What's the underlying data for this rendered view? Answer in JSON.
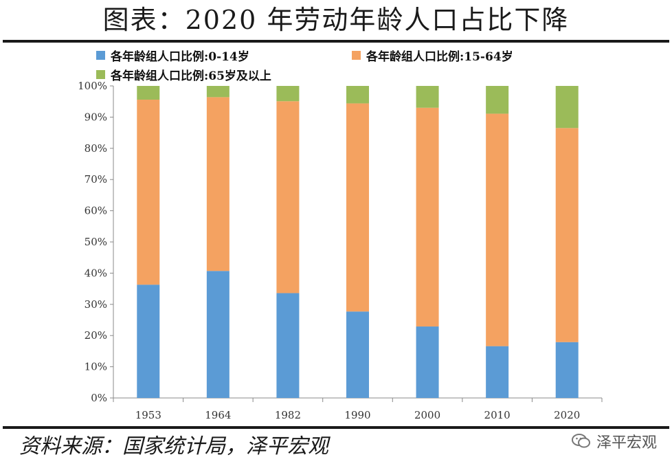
{
  "title": "图表：2020 年劳动年龄人口占比下降",
  "source": "资料来源：国家统计局，泽平宏观",
  "watermark": "泽平宏观",
  "icons": {
    "watermark": "wechat-icon"
  },
  "colors": {
    "series_0_14": "#5b9bd5",
    "series_15_64": "#f4a261",
    "series_65plus": "#9bbb59",
    "rule": "#1a1a1a"
  },
  "chart_data": {
    "type": "bar",
    "stacked": true,
    "categories": [
      "1953",
      "1964",
      "1982",
      "1990",
      "2000",
      "2010",
      "2020"
    ],
    "series": [
      {
        "name": "各年龄组人口比例:0-14岁",
        "values": [
          36.3,
          40.7,
          33.6,
          27.7,
          22.9,
          16.6,
          17.9
        ]
      },
      {
        "name": "各年龄组人口比例:15-64岁",
        "values": [
          59.3,
          55.7,
          61.5,
          66.7,
          70.1,
          74.5,
          68.6
        ]
      },
      {
        "name": "各年龄组人口比例:65岁及以上",
        "values": [
          4.4,
          3.6,
          4.9,
          5.6,
          7.0,
          8.9,
          13.5
        ]
      }
    ],
    "ylim": [
      0,
      100
    ],
    "yticks": [
      "0%",
      "10%",
      "20%",
      "30%",
      "40%",
      "50%",
      "60%",
      "70%",
      "80%",
      "90%",
      "100%"
    ],
    "legend_position": "top",
    "grid": false
  }
}
